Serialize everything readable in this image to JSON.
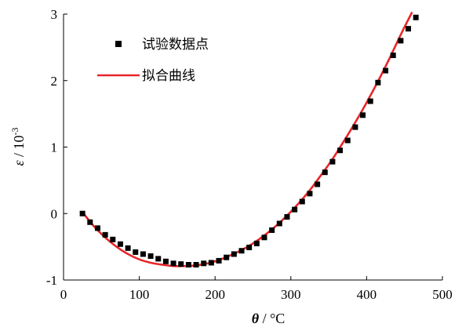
{
  "chart_data": {
    "type": "scatter",
    "xlabel": {
      "symbol": "θ",
      "unit": " / °C"
    },
    "ylabel": {
      "symbol": "ε",
      "unit": " / 10",
      "exp": "-3"
    },
    "xlim": [
      0,
      500
    ],
    "ylim": [
      -1,
      3
    ],
    "x_ticks": [
      "0",
      "100",
      "200",
      "300",
      "400",
      "500"
    ],
    "y_ticks": [
      "-1",
      "0",
      "1",
      "2",
      "3"
    ],
    "legend_position": "top-left",
    "series": [
      {
        "name": "试验数据点",
        "kind": "markers",
        "color": "#000000",
        "points": [
          [
            25,
            0.0
          ],
          [
            35,
            -0.13
          ],
          [
            45,
            -0.22
          ],
          [
            55,
            -0.32
          ],
          [
            65,
            -0.39
          ],
          [
            75,
            -0.46
          ],
          [
            85,
            -0.52
          ],
          [
            95,
            -0.58
          ],
          [
            105,
            -0.61
          ],
          [
            115,
            -0.64
          ],
          [
            125,
            -0.68
          ],
          [
            135,
            -0.72
          ],
          [
            145,
            -0.75
          ],
          [
            155,
            -0.76
          ],
          [
            165,
            -0.77
          ],
          [
            175,
            -0.77
          ],
          [
            185,
            -0.75
          ],
          [
            195,
            -0.74
          ],
          [
            205,
            -0.71
          ],
          [
            215,
            -0.66
          ],
          [
            225,
            -0.61
          ],
          [
            235,
            -0.56
          ],
          [
            245,
            -0.51
          ],
          [
            255,
            -0.45
          ],
          [
            265,
            -0.36
          ],
          [
            275,
            -0.25
          ],
          [
            285,
            -0.15
          ],
          [
            295,
            -0.05
          ],
          [
            305,
            0.06
          ],
          [
            315,
            0.18
          ],
          [
            325,
            0.3
          ],
          [
            335,
            0.44
          ],
          [
            345,
            0.62
          ],
          [
            355,
            0.78
          ],
          [
            365,
            0.95
          ],
          [
            375,
            1.1
          ],
          [
            385,
            1.3
          ],
          [
            395,
            1.48
          ],
          [
            405,
            1.69
          ],
          [
            415,
            1.97
          ],
          [
            425,
            2.15
          ],
          [
            435,
            2.38
          ],
          [
            445,
            2.6
          ],
          [
            455,
            2.78
          ],
          [
            465,
            2.95
          ]
        ]
      },
      {
        "name": "拟合曲线",
        "kind": "line",
        "color": "#e8262a",
        "points": [
          [
            25,
            0.02
          ],
          [
            40,
            -0.19
          ],
          [
            55,
            -0.36
          ],
          [
            70,
            -0.5
          ],
          [
            85,
            -0.61
          ],
          [
            100,
            -0.69
          ],
          [
            115,
            -0.74
          ],
          [
            130,
            -0.77
          ],
          [
            145,
            -0.79
          ],
          [
            160,
            -0.79
          ],
          [
            175,
            -0.78
          ],
          [
            190,
            -0.75
          ],
          [
            205,
            -0.7
          ],
          [
            220,
            -0.63
          ],
          [
            235,
            -0.55
          ],
          [
            250,
            -0.45
          ],
          [
            265,
            -0.33
          ],
          [
            280,
            -0.19
          ],
          [
            295,
            -0.03
          ],
          [
            310,
            0.15
          ],
          [
            325,
            0.35
          ],
          [
            340,
            0.58
          ],
          [
            355,
            0.82
          ],
          [
            370,
            1.09
          ],
          [
            385,
            1.37
          ],
          [
            400,
            1.67
          ],
          [
            415,
            1.99
          ],
          [
            430,
            2.33
          ],
          [
            445,
            2.69
          ],
          [
            460,
            3.03
          ]
        ]
      }
    ]
  }
}
